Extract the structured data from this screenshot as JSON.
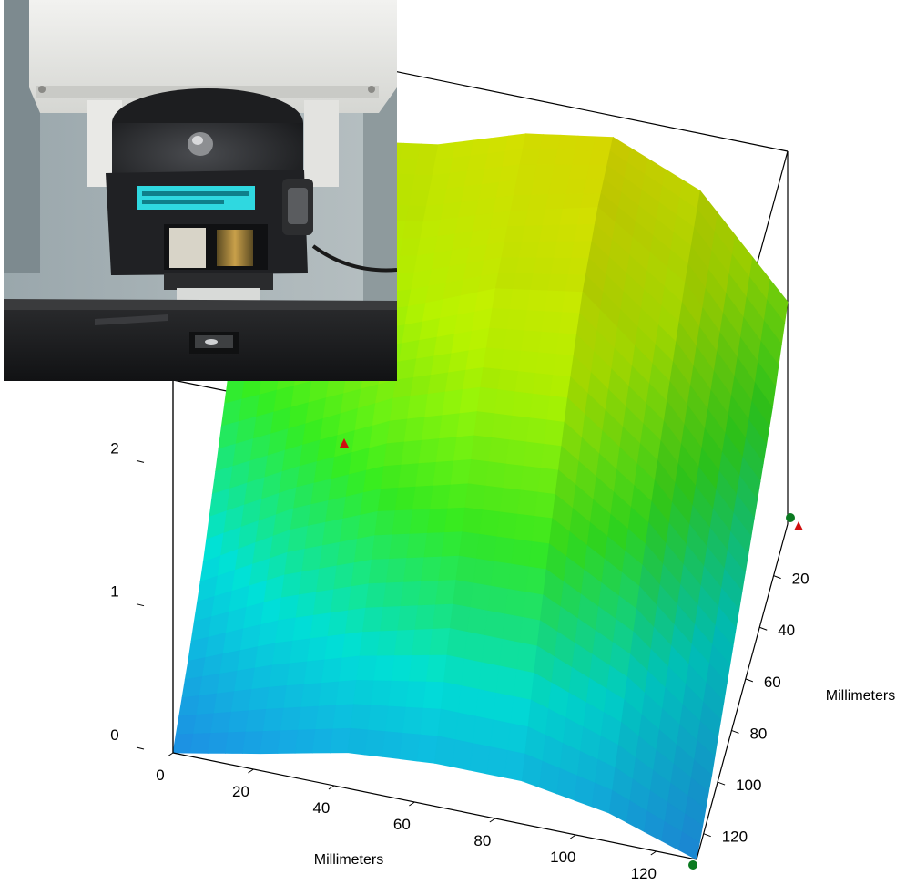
{
  "chart_data": {
    "type": "surface3d",
    "title": "",
    "x_axis": {
      "label": "Millimeters",
      "ticks": [
        0,
        20,
        40,
        60,
        80,
        100,
        120
      ],
      "range": [
        0,
        130
      ]
    },
    "y_axis": {
      "label": "Millimeters",
      "ticks": [
        20,
        40,
        60,
        80,
        100,
        120
      ],
      "range": [
        0,
        130
      ]
    },
    "z_axis": {
      "label": "",
      "ticks": [
        0,
        1,
        2
      ],
      "range": [
        0,
        2.6
      ]
    },
    "grid": false,
    "colormap": [
      "#1e8fe6",
      "#00d8d0",
      "#33e41f",
      "#b4f000",
      "#e0e000"
    ],
    "x": [
      0,
      21.7,
      43.3,
      65,
      86.7,
      108.3,
      130
    ],
    "y": [
      0,
      21.7,
      43.3,
      65,
      86.7,
      108.3,
      130
    ],
    "z": [
      [
        2.05,
        2.05,
        2.15,
        2.35,
        2.45,
        2.2,
        1.55
      ],
      [
        1.75,
        1.9,
        2.0,
        2.2,
        2.35,
        1.95,
        1.2
      ],
      [
        1.35,
        1.6,
        1.8,
        2.05,
        2.15,
        1.65,
        0.95
      ],
      [
        0.95,
        1.25,
        1.55,
        1.75,
        1.8,
        1.35,
        0.7
      ],
      [
        0.55,
        0.9,
        1.15,
        1.3,
        1.35,
        1.0,
        0.45
      ],
      [
        0.25,
        0.5,
        0.7,
        0.85,
        0.85,
        0.6,
        0.2
      ],
      [
        0.0,
        0.12,
        0.25,
        0.3,
        0.3,
        0.2,
        0.0
      ]
    ],
    "markers": [
      {
        "color": "#d01010"
      },
      {
        "color": "#0a7a20"
      }
    ]
  },
  "inset_photo": {
    "caption": ""
  }
}
